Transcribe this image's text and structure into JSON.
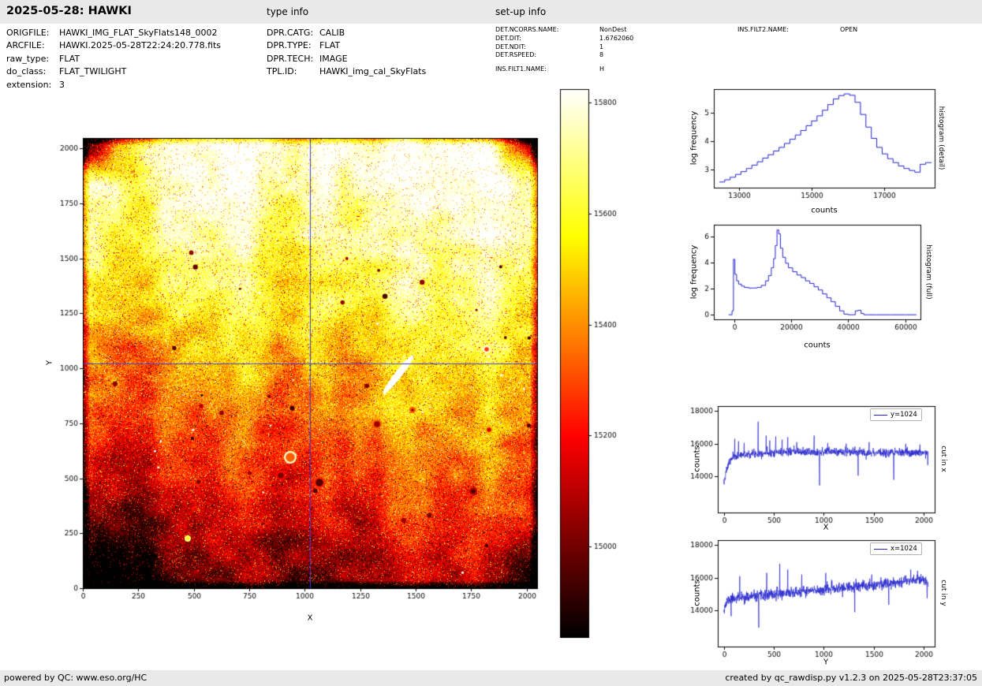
{
  "header": {
    "title": "2025-05-28: HAWKI",
    "type_info_label": "type info",
    "setup_info_label": "set-up info"
  },
  "metadata": {
    "rows": [
      {
        "label": "ORIGFILE:",
        "value": "HAWKI_IMG_FLAT_SkyFlats148_0002"
      },
      {
        "label": "ARCFILE:",
        "value": "HAWKI.2025-05-28T22:24:20.778.fits"
      },
      {
        "label": "raw_type:",
        "value": "FLAT"
      },
      {
        "label": "do_class:",
        "value": "FLAT_TWILIGHT"
      },
      {
        "label": "extension:",
        "value": "3"
      }
    ]
  },
  "type_info": {
    "rows": [
      {
        "label": "DPR.CATG:",
        "value": "CALIB"
      },
      {
        "label": "DPR.TYPE:",
        "value": "FLAT"
      },
      {
        "label": "DPR.TECH:",
        "value": "IMAGE"
      },
      {
        "label": "TPL.ID:",
        "value": "HAWKI_img_cal_SkyFlats"
      }
    ]
  },
  "setup_info": {
    "col1": [
      {
        "label": "DET.NCORRS.NAME:",
        "value": "NonDest"
      },
      {
        "label": "DET.DIT:",
        "value": "1.6762060"
      },
      {
        "label": "DET.NDIT:",
        "value": "1"
      },
      {
        "label": "DET.RSPEED:",
        "value": "8"
      },
      {
        "label": "INS.FILT1.NAME:",
        "value": "H"
      }
    ],
    "col2": [
      {
        "label": "INS.FILT2.NAME:",
        "value": "OPEN"
      }
    ]
  },
  "footer": {
    "left": "powered by QC: www.eso.org/HC",
    "right": "created by qc_rawdisp.py v1.2.3 on 2025-05-28T23:37:05"
  },
  "colors": {
    "line": "#2222cc",
    "crosshair": "#3b3bd8",
    "axis": "#000000",
    "bar_bg": "#e9e9e9"
  },
  "chart_data": [
    {
      "id": "main_image",
      "type": "heatmap",
      "xlabel": "X",
      "ylabel": "Y",
      "xlim": [
        0,
        2048
      ],
      "ylim": [
        0,
        2048
      ],
      "xticks": [
        0,
        250,
        500,
        750,
        1000,
        1250,
        1500,
        1750,
        2000
      ],
      "yticks": [
        0,
        250,
        500,
        750,
        1000,
        1250,
        1500,
        1750,
        2000
      ],
      "colormap": "hot",
      "value_range": [
        14837,
        15824
      ],
      "colorbar_ticks": [
        15000,
        15200,
        15400,
        15600,
        15800
      ],
      "crosshair": {
        "x": 1024,
        "y": 1024
      },
      "features": {
        "seed": 42,
        "bands": [
          {
            "x": 75,
            "w": 26,
            "amp": -0.1
          },
          {
            "x": 170,
            "w": 38,
            "amp": 0.08
          },
          {
            "x": 250,
            "w": 22,
            "amp": -0.05
          },
          {
            "x": 330,
            "w": 24,
            "amp": -0.06
          },
          {
            "x": 425,
            "w": 55,
            "amp": 0.07
          },
          {
            "x": 520,
            "w": 26,
            "amp": 0.05
          }
        ],
        "streak": {
          "x": 400,
          "y": 300,
          "len": 62,
          "w": 9,
          "angle_deg": -52
        },
        "donuts": [
          {
            "x": 512,
            "y": 268,
            "r": 5,
            "ring": 0.97,
            "core": 0.45
          },
          {
            "x": 515,
            "y": 370,
            "r": 5,
            "ring": 0.62,
            "core": 0.3
          },
          {
            "x": 373,
            "y": 363,
            "r": 6,
            "ring": 0.5,
            "core": 0.22
          },
          {
            "x": 263,
            "y": 405,
            "r": 8,
            "ring": 0.95,
            "core": 0.5
          },
          {
            "x": 300,
            "y": 437,
            "r": 7,
            "ring": 0.42,
            "core": 0.12
          },
          {
            "x": 251,
            "y": 428,
            "r": 6,
            "ring": 0.38,
            "core": 0.18
          },
          {
            "x": 133,
            "y": 508,
            "r": 4,
            "ring": 0.85,
            "core": 0.7
          },
          {
            "x": 495,
            "y": 448,
            "r": 5,
            "ring": 0.28,
            "core": 0.1
          },
          {
            "x": 418,
            "y": 345,
            "r": 4,
            "ring": 0.5,
            "core": 0.2
          },
          {
            "x": 150,
            "y": 340,
            "r": 3,
            "ring": 0.3,
            "core": 0.12
          }
        ],
        "n_dark_dots": 34,
        "n_white_dots": 22
      }
    },
    {
      "id": "hist_detail",
      "type": "line",
      "style": "step",
      "xlabel": "counts",
      "ylabel": "log frequency",
      "right_label": "histogram (detail)",
      "xlim": [
        12300,
        18400
      ],
      "ylim": [
        2.35,
        5.85
      ],
      "xticks": [
        13000,
        15000,
        17000
      ],
      "yticks": [
        3,
        4,
        5
      ],
      "x": [
        12450,
        12600,
        12750,
        12900,
        13050,
        13200,
        13350,
        13500,
        13650,
        13800,
        13950,
        14100,
        14250,
        14400,
        14550,
        14700,
        14850,
        15000,
        15150,
        15300,
        15450,
        15600,
        15750,
        15900,
        16050,
        16200,
        16350,
        16500,
        16650,
        16800,
        16950,
        17100,
        17250,
        17400,
        17550,
        17700,
        17850,
        18000,
        18150,
        18300
      ],
      "y": [
        2.55,
        2.63,
        2.72,
        2.82,
        2.92,
        3.03,
        3.15,
        3.27,
        3.4,
        3.52,
        3.65,
        3.78,
        3.92,
        4.07,
        4.22,
        4.38,
        4.55,
        4.72,
        4.9,
        5.1,
        5.3,
        5.5,
        5.62,
        5.68,
        5.63,
        5.38,
        4.95,
        4.5,
        4.1,
        3.78,
        3.55,
        3.38,
        3.24,
        3.12,
        3.03,
        2.96,
        2.9,
        3.18,
        3.24,
        3.22
      ]
    },
    {
      "id": "hist_full",
      "type": "line",
      "style": "step",
      "xlabel": "counts",
      "ylabel": "log frequency",
      "right_label": "histogram (full)",
      "xlim": [
        -7200,
        65400
      ],
      "ylim": [
        -0.35,
        6.9
      ],
      "xticks": [
        0,
        20000,
        40000,
        60000
      ],
      "yticks": [
        0,
        2,
        4,
        6
      ],
      "x": [
        -2000,
        -800,
        -300,
        200,
        800,
        1500,
        2500,
        3500,
        5000,
        6500,
        8000,
        9500,
        11000,
        12000,
        13000,
        13800,
        14400,
        15000,
        15600,
        16200,
        17000,
        18000,
        19000,
        20500,
        22000,
        23500,
        25000,
        26500,
        28000,
        29500,
        31000,
        32500,
        34000,
        35500,
        37000,
        38500,
        40000,
        41500,
        42500,
        43500,
        44500,
        45500,
        47000,
        50000,
        55000,
        60000,
        64000
      ],
      "y": [
        0,
        0.3,
        4.25,
        3.1,
        2.6,
        2.35,
        2.2,
        2.1,
        2.05,
        2.05,
        2.1,
        2.25,
        2.6,
        3.0,
        3.6,
        4.3,
        5.3,
        6.5,
        6.2,
        5.1,
        4.4,
        3.95,
        3.6,
        3.3,
        3.05,
        2.85,
        2.6,
        2.4,
        2.15,
        1.9,
        1.6,
        1.3,
        1.0,
        0.65,
        0.3,
        0.05,
        0,
        0,
        0.3,
        0.35,
        0.1,
        0,
        0,
        0,
        0,
        0,
        0
      ]
    },
    {
      "id": "cut_x",
      "type": "line",
      "legend_label": "y=1024",
      "xlabel": "X",
      "ylabel": "counts",
      "right_label": "cut in x",
      "xlim": [
        -60,
        2110
      ],
      "ylim": [
        11800,
        18300
      ],
      "xticks": [
        0,
        500,
        1000,
        1500,
        2000
      ],
      "yticks": [
        14000,
        16000,
        18000
      ],
      "n_points": 1024,
      "x_max": 2047,
      "noise_sigma": 120,
      "seed": 7,
      "trend": [
        [
          0,
          13500
        ],
        [
          25,
          14300
        ],
        [
          55,
          14900
        ],
        [
          90,
          15150
        ],
        [
          150,
          15300
        ],
        [
          300,
          15400
        ],
        [
          500,
          15480
        ],
        [
          700,
          15500
        ],
        [
          900,
          15490
        ],
        [
          1100,
          15520
        ],
        [
          1300,
          15490
        ],
        [
          1500,
          15460
        ],
        [
          1700,
          15440
        ],
        [
          1900,
          15450
        ],
        [
          2047,
          15470
        ]
      ],
      "spikes": [
        [
          110,
          16300
        ],
        [
          148,
          16150
        ],
        [
          205,
          16050
        ],
        [
          345,
          17350
        ],
        [
          425,
          16500
        ],
        [
          460,
          16200
        ],
        [
          520,
          16450
        ],
        [
          585,
          16250
        ],
        [
          640,
          16400
        ],
        [
          730,
          16100
        ],
        [
          905,
          16500
        ],
        [
          958,
          13450
        ],
        [
          1040,
          16050
        ],
        [
          1225,
          16000
        ],
        [
          1345,
          14050
        ],
        [
          1455,
          16100
        ],
        [
          1700,
          13800
        ],
        [
          1820,
          16000
        ],
        [
          1962,
          15950
        ],
        [
          2040,
          14700
        ]
      ]
    },
    {
      "id": "cut_y",
      "type": "line",
      "legend_label": "x=1024",
      "xlabel": "Y",
      "ylabel": "counts",
      "right_label": "cut in y",
      "xlim": [
        -60,
        2110
      ],
      "ylim": [
        11800,
        18300
      ],
      "xticks": [
        0,
        500,
        1000,
        1500,
        2000
      ],
      "yticks": [
        14000,
        16000,
        18000
      ],
      "n_points": 1024,
      "x_max": 2047,
      "noise_sigma": 160,
      "seed": 11,
      "trend": [
        [
          0,
          14100
        ],
        [
          40,
          14650
        ],
        [
          120,
          14780
        ],
        [
          250,
          14830
        ],
        [
          400,
          14900
        ],
        [
          600,
          15050
        ],
        [
          800,
          15150
        ],
        [
          1000,
          15280
        ],
        [
          1200,
          15380
        ],
        [
          1400,
          15500
        ],
        [
          1600,
          15640
        ],
        [
          1800,
          15800
        ],
        [
          1950,
          15930
        ],
        [
          2010,
          15900
        ],
        [
          2047,
          15480
        ]
      ],
      "spikes": [
        [
          75,
          13650
        ],
        [
          160,
          16100
        ],
        [
          350,
          12950
        ],
        [
          430,
          16300
        ],
        [
          560,
          16850
        ],
        [
          640,
          16500
        ],
        [
          780,
          16200
        ],
        [
          1020,
          16300
        ],
        [
          1310,
          13900
        ],
        [
          1480,
          16200
        ],
        [
          1650,
          14350
        ],
        [
          1870,
          16500
        ],
        [
          2035,
          14750
        ]
      ]
    }
  ]
}
